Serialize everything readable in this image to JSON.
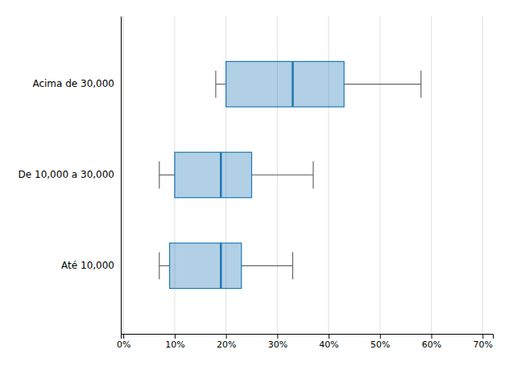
{
  "chart_data": {
    "type": "box",
    "orientation": "horizontal",
    "grid": true,
    "categories": [
      "Acima de 30,000",
      "De 10,000 a 30,000",
      "Até 10,000"
    ],
    "whisker_min": [
      0.18,
      0.07,
      0.07
    ],
    "q1": [
      0.2,
      0.1,
      0.09
    ],
    "median": [
      0.33,
      0.19,
      0.19
    ],
    "q3": [
      0.43,
      0.25,
      0.23
    ],
    "whisker_max": [
      0.58,
      0.37,
      0.33
    ],
    "xlim": [
      -0.005,
      0.72
    ],
    "xticks": [
      {
        "value": 0.0,
        "label": "0%"
      },
      {
        "value": 0.1,
        "label": "10%"
      },
      {
        "value": 0.2,
        "label": "20%"
      },
      {
        "value": 0.3,
        "label": "30%"
      },
      {
        "value": 0.4,
        "label": "40%"
      },
      {
        "value": 0.5,
        "label": "50%"
      },
      {
        "value": 0.6,
        "label": "60%"
      },
      {
        "value": 0.7,
        "label": "70%"
      }
    ]
  }
}
